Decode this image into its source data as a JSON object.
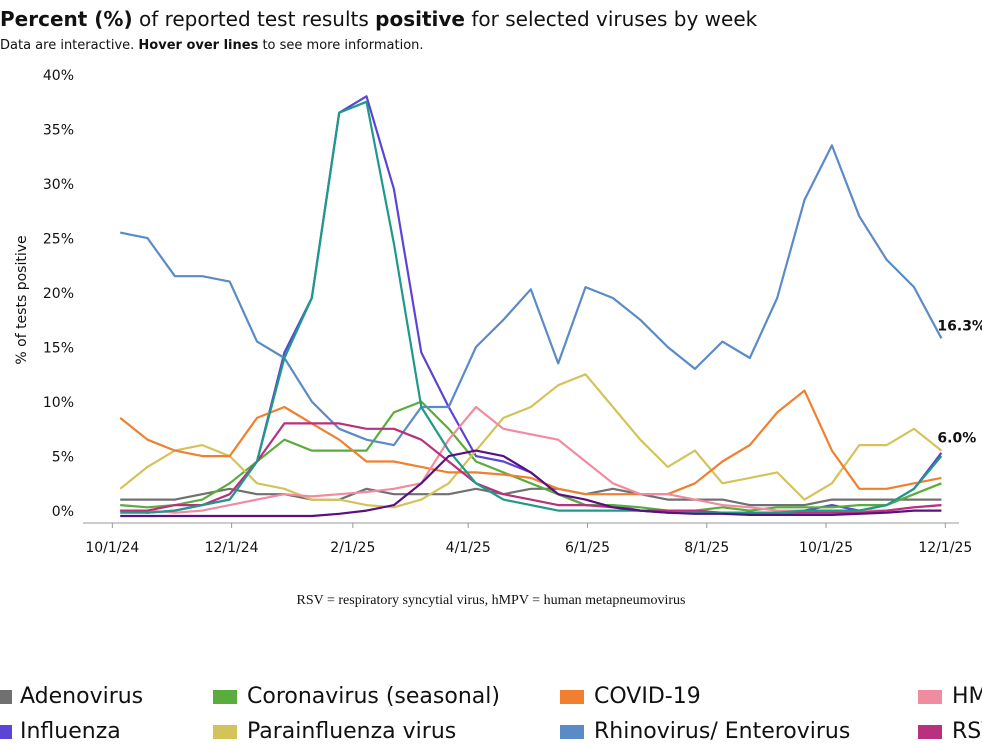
{
  "chart_data": {
    "type": "line",
    "title": [
      {
        "text": "Percent (%)",
        "bold": true
      },
      {
        "text": " of reported test results ",
        "bold": false
      },
      {
        "text": "positive",
        "bold": true
      },
      {
        "text": " for selected viruses by week",
        "bold": false
      }
    ],
    "subtitle": [
      {
        "text": "Data are interactive. ",
        "bold": false
      },
      {
        "text": "Hover over lines",
        "bold": true
      },
      {
        "text": " to see more information.",
        "bold": false
      }
    ],
    "ylabel": "% of tests positive",
    "footnote": "RSV = respiratory syncytial virus, hMPV = human metapneumovirus",
    "x": [
      "10/5/24",
      "10/19/24",
      "11/2/24",
      "11/16/24",
      "11/30/24",
      "12/14/24",
      "12/28/24",
      "1/11/25",
      "1/25/25",
      "2/8/25",
      "2/22/25",
      "3/8/25",
      "3/22/25",
      "4/5/25",
      "4/19/25",
      "5/3/25",
      "5/17/25",
      "5/31/25",
      "6/14/25",
      "6/28/25",
      "7/12/25",
      "7/26/25",
      "8/9/25",
      "8/23/25",
      "9/6/25",
      "9/20/25",
      "10/4/25",
      "10/18/25",
      "11/1/25",
      "11/15/25",
      "11/29/25"
    ],
    "xlim": [
      "9/16/24",
      "12/8/25"
    ],
    "xticks": [
      "10/1/24",
      "12/1/24",
      "2/1/25",
      "4/1/25",
      "6/1/25",
      "8/1/25",
      "10/1/25",
      "12/1/25"
    ],
    "ylim": [
      0,
      40
    ],
    "yticks": [
      {
        "value": 0,
        "label": "0%"
      },
      {
        "value": 5,
        "label": "5%"
      },
      {
        "value": 10,
        "label": "10%"
      },
      {
        "value": 15,
        "label": "15%"
      },
      {
        "value": 20,
        "label": "20%"
      },
      {
        "value": 25,
        "label": "25%"
      },
      {
        "value": 30,
        "label": "30%"
      },
      {
        "value": 35,
        "label": "35%"
      },
      {
        "value": 40,
        "label": "40%"
      }
    ],
    "series": [
      {
        "name": "Adenovirus",
        "color": "#707070",
        "values": [
          1.5,
          1.5,
          1.5,
          2,
          2.5,
          2,
          2,
          1.5,
          1.5,
          2.5,
          2,
          2,
          2,
          2.5,
          2,
          2.5,
          2.5,
          2,
          2.5,
          2,
          1.5,
          1.5,
          1.5,
          1,
          1,
          1,
          1.5,
          1.5,
          1.5,
          1.5,
          1.5
        ]
      },
      {
        "name": "Influenza",
        "color": "#5b44d6",
        "values": [
          0.5,
          0.3,
          0.5,
          1,
          1.5,
          5,
          15,
          20,
          37,
          38.5,
          30,
          15,
          10,
          5.5,
          5,
          4,
          2,
          1,
          1,
          0.5,
          0.3,
          0.3,
          0.3,
          0.3,
          0.3,
          0.5,
          1,
          0.5,
          1,
          2.5,
          5.8
        ]
      },
      {
        "name": "Coronavirus (seasonal)",
        "color": "#5aad3c",
        "values": [
          1,
          0.8,
          1,
          1.5,
          3,
          5,
          7,
          6,
          6,
          6,
          9.5,
          10.5,
          8,
          5,
          4,
          3,
          2,
          1,
          1,
          0.8,
          0.5,
          0.5,
          0.8,
          0.5,
          0.8,
          0.8,
          0.8,
          1,
          1,
          2,
          3
        ]
      },
      {
        "name": "Parainfluenza virus",
        "color": "#d4c35a",
        "values": [
          2.5,
          4.5,
          6,
          6.5,
          5.5,
          3,
          2.5,
          1.5,
          1.5,
          1,
          0.8,
          1.5,
          3,
          6,
          9,
          10,
          12,
          13,
          10,
          7,
          4.5,
          6,
          3,
          3.5,
          4,
          1.5,
          3,
          6.5,
          6.5,
          8,
          6.0
        ],
        "value_labels": [
          null,
          null,
          null,
          null,
          null,
          null,
          null,
          null,
          null,
          null,
          null,
          null,
          null,
          null,
          null,
          null,
          null,
          null,
          null,
          null,
          null,
          null,
          null,
          null,
          null,
          null,
          null,
          null,
          null,
          null,
          "6.0%"
        ]
      },
      {
        "name": "COVID-19",
        "color": "#f08030",
        "values": [
          9,
          7,
          6,
          5.5,
          5.5,
          9,
          10,
          8.5,
          7,
          5,
          5,
          4.5,
          4,
          4,
          3.8,
          3.5,
          2.5,
          2,
          2,
          2,
          2,
          3,
          5,
          6.5,
          9.5,
          11.5,
          6,
          2.5,
          2.5,
          3,
          3.5
        ]
      },
      {
        "name": "Rhinovirus/ Enterovirus",
        "color": "#5b8bc6",
        "values": [
          26,
          25.5,
          22,
          22,
          21.5,
          16,
          14.5,
          10.5,
          8,
          7,
          6.5,
          10,
          10,
          15.5,
          18,
          20.8,
          14,
          21,
          20,
          18,
          15.5,
          13.5,
          16,
          14.5,
          20,
          29,
          34,
          27.5,
          23.5,
          21,
          16.3
        ],
        "value_labels": [
          null,
          null,
          null,
          null,
          null,
          null,
          null,
          null,
          null,
          null,
          null,
          null,
          null,
          null,
          null,
          null,
          null,
          null,
          null,
          null,
          null,
          null,
          null,
          null,
          null,
          null,
          null,
          null,
          null,
          null,
          "16.3%"
        ]
      },
      {
        "name": "HMPV",
        "color": "#f08ca0",
        "values": [
          0.5,
          0.5,
          0.3,
          0.5,
          1,
          1.5,
          2,
          1.8,
          2,
          2.2,
          2.5,
          3,
          7,
          10,
          8,
          7.5,
          7,
          5,
          3,
          2,
          2,
          1.5,
          1,
          0.8,
          0.5,
          0.5,
          0.5,
          0.5,
          0.5,
          0.8,
          1
        ]
      },
      {
        "name": "RSV",
        "color": "#b8307e",
        "values": [
          0.5,
          0.5,
          1,
          1,
          2,
          5,
          8.5,
          8.5,
          8.5,
          8,
          8,
          7,
          5,
          3,
          2,
          1.5,
          1,
          1,
          0.8,
          0.5,
          0.5,
          0.5,
          0.3,
          0.3,
          0.3,
          0.3,
          0.3,
          0.3,
          0.5,
          0.8,
          1
        ]
      },
      {
        "color": "#1f9a8a",
        "values": [
          0.3,
          0.3,
          0.5,
          1,
          1.5,
          5,
          14.5,
          20,
          37,
          38,
          25,
          10,
          6,
          3,
          1.5,
          1,
          0.5,
          0.5,
          0.5,
          0.5,
          0.3,
          0.3,
          0.3,
          0.3,
          0.3,
          0.5,
          0.5,
          0.5,
          1,
          2.5,
          5.5
        ]
      },
      {
        "color": "#5a1080",
        "values": [
          0,
          0,
          0,
          0,
          0,
          0,
          0,
          0,
          0.2,
          0.5,
          1,
          3,
          5.5,
          6,
          5.5,
          4,
          2,
          1.5,
          0.8,
          0.5,
          0.3,
          0.2,
          0.2,
          0.1,
          0.1,
          0.1,
          0.1,
          0.2,
          0.3,
          0.5,
          0.5
        ]
      }
    ]
  }
}
